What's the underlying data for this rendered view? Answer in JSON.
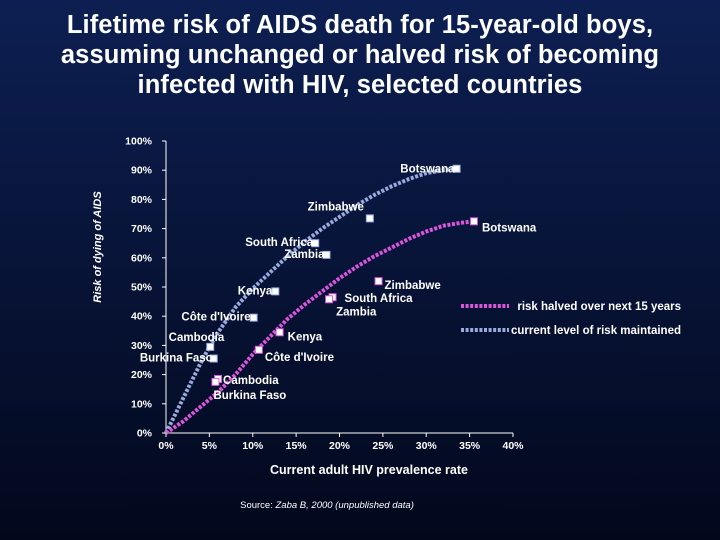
{
  "title_lines": [
    "Lifetime risk of AIDS death for 15-year-old boys,",
    "assuming unchanged or halved risk of becoming",
    "infected with HIV, selected countries"
  ],
  "source": {
    "prefix": "Source: ",
    "citation": "Zaba B, 2000 (unpublished data)"
  },
  "chart_data": {
    "type": "line",
    "xlabel": "Current adult HIV prevalence rate",
    "ylabel": "Risk of dying of AIDS",
    "xlim": [
      0,
      40
    ],
    "ylim": [
      0,
      100
    ],
    "x_ticks": [
      "0%",
      "5%",
      "10%",
      "15%",
      "20%",
      "25%",
      "30%",
      "35%",
      "40%"
    ],
    "y_ticks": [
      "0%",
      "10%",
      "20%",
      "30%",
      "40%",
      "50%",
      "60%",
      "70%",
      "80%",
      "90%",
      "100%"
    ],
    "grid": false,
    "legend_position": "right",
    "series": [
      {
        "name": "current level of risk maintained",
        "color": "#99aadd",
        "style": "dotted-blue",
        "curve": [
          [
            0,
            0
          ],
          [
            1,
            6
          ],
          [
            2,
            12
          ],
          [
            3,
            18
          ],
          [
            4,
            24
          ],
          [
            5,
            29.5
          ],
          [
            6,
            34.5
          ],
          [
            8,
            43
          ],
          [
            10,
            49.5
          ],
          [
            12,
            55
          ],
          [
            14,
            60.5
          ],
          [
            16,
            65.5
          ],
          [
            18,
            70
          ],
          [
            20,
            74
          ],
          [
            22,
            78
          ],
          [
            24,
            81.5
          ],
          [
            26,
            84.5
          ],
          [
            28,
            87
          ],
          [
            30,
            89
          ],
          [
            32,
            90
          ],
          [
            33.5,
            90.5
          ]
        ],
        "points": [
          {
            "label": "Botswana",
            "x": 33.5,
            "y": 90.5
          },
          {
            "label": "Zimbabwe",
            "x": 23.5,
            "y": 73.5
          },
          {
            "label": "South Africa",
            "x": 17.2,
            "y": 65
          },
          {
            "label": "Zambia",
            "x": 18.5,
            "y": 61
          },
          {
            "label": "Kenya",
            "x": 12.6,
            "y": 48.5
          },
          {
            "label": "Côte d'Ivoire",
            "x": 10.1,
            "y": 39.5
          },
          {
            "label": "Cambodia",
            "x": 5.1,
            "y": 29.5
          },
          {
            "label": "Burkina Faso",
            "x": 5.5,
            "y": 25.5
          }
        ]
      },
      {
        "name": "risk halved over next 15 years",
        "color": "#dd55dd",
        "style": "dotted-pink",
        "curve": [
          [
            0,
            0
          ],
          [
            2,
            4
          ],
          [
            4,
            9
          ],
          [
            6,
            14
          ],
          [
            8,
            20
          ],
          [
            10,
            27
          ],
          [
            12,
            33
          ],
          [
            14,
            39
          ],
          [
            16,
            44
          ],
          [
            18,
            48.5
          ],
          [
            20,
            53
          ],
          [
            22,
            57
          ],
          [
            24,
            60.5
          ],
          [
            26,
            63.5
          ],
          [
            28,
            66.5
          ],
          [
            30,
            69
          ],
          [
            32,
            71
          ],
          [
            34,
            72
          ],
          [
            35.5,
            72.5
          ]
        ],
        "points": [
          {
            "label": "Botswana",
            "x": 35.5,
            "y": 72.5
          },
          {
            "label": "Zimbabwe",
            "x": 24.5,
            "y": 52
          },
          {
            "label": "South Africa",
            "x": 19.2,
            "y": 46.5
          },
          {
            "label": "Zambia",
            "x": 18.8,
            "y": 45.8
          },
          {
            "label": "Kenya",
            "x": 13.1,
            "y": 34.5
          },
          {
            "label": "Côte d'Ivoire",
            "x": 10.7,
            "y": 28.5
          },
          {
            "label": "Cambodia",
            "x": 6.0,
            "y": 18.5
          },
          {
            "label": "Burkina Faso",
            "x": 5.7,
            "y": 17.5
          }
        ]
      }
    ]
  }
}
